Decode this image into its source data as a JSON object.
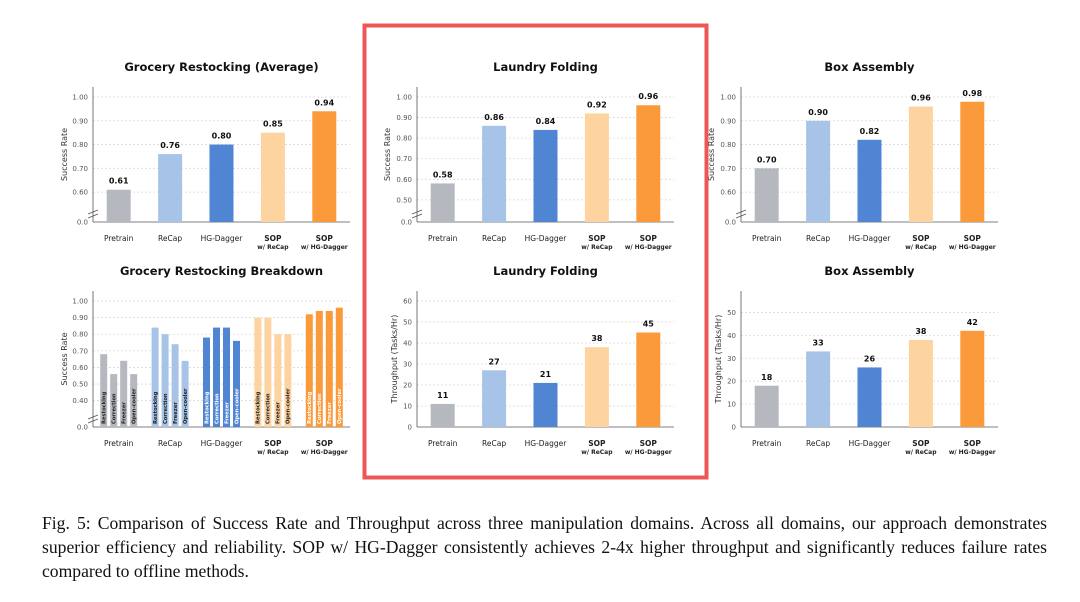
{
  "colors": {
    "pretrain": "#b5b8be",
    "recap": "#a7c4e8",
    "hgdagger": "#4f85d3",
    "sop_recap": "#fdd3a0",
    "sop_hg": "#fb9a3a",
    "highlight": "#ee5555",
    "grid": "#d9d9d9",
    "axis": "#555555"
  },
  "categories": [
    {
      "main": "Pretrain",
      "sub": ""
    },
    {
      "main": "ReCap",
      "sub": ""
    },
    {
      "main": "HG-Dagger",
      "sub": ""
    },
    {
      "main": "SOP",
      "sub": "w/ ReCap"
    },
    {
      "main": "SOP",
      "sub": "w/ HG-Dagger"
    }
  ],
  "chart_data": [
    {
      "id": "grocery-success",
      "type": "bar",
      "title": "Grocery Restocking (Average)",
      "ylabel": "Success Rate",
      "ylim": [
        0.55,
        1.0
      ],
      "yticks": [
        "1.00",
        "0.90",
        "0.80",
        "0.70",
        "0.60"
      ],
      "ytick_values": [
        1.0,
        0.9,
        0.8,
        0.7,
        0.6
      ],
      "zero_label": "0.0",
      "values": [
        0.61,
        0.76,
        0.8,
        0.85,
        0.94
      ],
      "labels": [
        "0.61",
        "0.76",
        "0.80",
        "0.85",
        "0.94"
      ]
    },
    {
      "id": "laundry-success",
      "type": "bar",
      "title": "Laundry Folding",
      "ylabel": "Success Rate",
      "ylim": [
        0.48,
        1.0
      ],
      "yticks": [
        "1.00",
        "0.90",
        "0.80",
        "0.70",
        "0.60",
        "0.50"
      ],
      "ytick_values": [
        1.0,
        0.9,
        0.8,
        0.7,
        0.6,
        0.5
      ],
      "zero_label": "0.0",
      "values": [
        0.58,
        0.86,
        0.84,
        0.92,
        0.96
      ],
      "labels": [
        "0.58",
        "0.86",
        "0.84",
        "0.92",
        "0.96"
      ]
    },
    {
      "id": "box-success",
      "type": "bar",
      "title": "Box Assembly",
      "ylabel": "Success Rate",
      "ylim": [
        0.55,
        1.0
      ],
      "yticks": [
        "1.00",
        "0.90",
        "0.80",
        "0.70",
        "0.60"
      ],
      "ytick_values": [
        1.0,
        0.9,
        0.8,
        0.7,
        0.6
      ],
      "zero_label": "0.0",
      "values": [
        0.7,
        0.9,
        0.82,
        0.96,
        0.98
      ],
      "labels": [
        "0.70",
        "0.90",
        "0.82",
        "0.96",
        "0.98"
      ]
    },
    {
      "id": "grocery-breakdown",
      "type": "bar",
      "title": "Grocery Restocking Breakdown",
      "ylabel": "Success Rate",
      "ylim": [
        0.35,
        1.0
      ],
      "yticks": [
        "1.00",
        "0.90",
        "0.80",
        "0.70",
        "0.60",
        "0.50",
        "0.40"
      ],
      "ytick_values": [
        1.0,
        0.9,
        0.8,
        0.7,
        0.6,
        0.5,
        0.4
      ],
      "zero_label": "0.0",
      "subcategories": [
        "Restocking",
        "Correction",
        "Freezer",
        "Open-cooler"
      ],
      "series": [
        {
          "name": "Pretrain",
          "values": [
            0.68,
            0.56,
            0.64,
            0.56
          ]
        },
        {
          "name": "ReCap",
          "values": [
            0.84,
            0.8,
            0.74,
            0.64
          ]
        },
        {
          "name": "HG-Dagger",
          "values": [
            0.78,
            0.84,
            0.84,
            0.76
          ]
        },
        {
          "name": "SOP w/ ReCap",
          "values": [
            0.9,
            0.9,
            0.8,
            0.8
          ]
        },
        {
          "name": "SOP w/ HG-Dagger",
          "values": [
            0.92,
            0.94,
            0.94,
            0.96
          ]
        }
      ]
    },
    {
      "id": "laundry-throughput",
      "type": "bar",
      "title": "Laundry Folding",
      "ylabel": "Throughput (Tasks/Hr)",
      "ylim": [
        0,
        60
      ],
      "yticks": [
        "60",
        "50",
        "40",
        "30",
        "20",
        "10",
        "0"
      ],
      "ytick_values": [
        60,
        50,
        40,
        30,
        20,
        10,
        0
      ],
      "values": [
        11,
        27,
        21,
        38,
        45
      ],
      "labels": [
        "11",
        "27",
        "21",
        "38",
        "45"
      ]
    },
    {
      "id": "box-throughput",
      "type": "bar",
      "title": "Box Assembly",
      "ylabel": "Throughput (Tasks/Hr)",
      "ylim": [
        0,
        55
      ],
      "yticks": [
        "50",
        "40",
        "30",
        "20",
        "10",
        "0"
      ],
      "ytick_values": [
        50,
        40,
        30,
        20,
        10,
        0
      ],
      "values": [
        18,
        33,
        26,
        38,
        42
      ],
      "labels": [
        "18",
        "33",
        "26",
        "38",
        "42"
      ]
    }
  ],
  "caption": "Fig. 5: Comparison of Success Rate and Throughput across three manipulation domains. Across all domains, our approach demonstrates superior efficiency and reliability. SOP w/ HG-Dagger consistently achieves 2-4x higher throughput and significantly reduces failure rates compared to offline methods."
}
